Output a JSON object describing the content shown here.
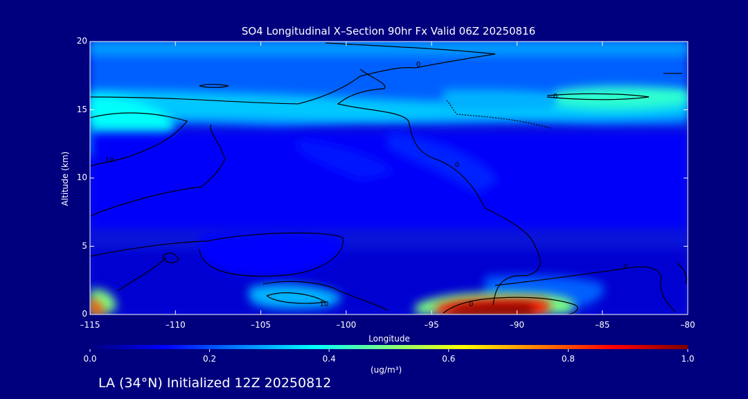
{
  "chart_data": {
    "type": "heatmap",
    "title": "SO4 Longitudinal X–Section 90hr  Fx Valid 06Z 20250816",
    "xlabel": "Longitude",
    "ylabel": "Altitude (km)",
    "xlim": [
      -115,
      -80
    ],
    "ylim": [
      0,
      20
    ],
    "x_ticks": [
      "–115",
      "–110",
      "–105",
      "–100",
      "–95",
      "–90",
      "–85",
      "–80"
    ],
    "x_tick_values": [
      -115,
      -110,
      -105,
      -100,
      -95,
      -90,
      -85,
      -80
    ],
    "y_ticks": [
      "0",
      "5",
      "10",
      "15",
      "20"
    ],
    "y_tick_values": [
      0,
      5,
      10,
      15,
      20
    ],
    "colorbar": {
      "range": [
        0.0,
        1.0
      ],
      "ticks": [
        "0.0",
        "0.2",
        "0.4",
        "0.6",
        "0.8",
        "1.0"
      ],
      "tick_values": [
        0.0,
        0.2,
        0.4,
        0.6,
        0.8,
        1.0
      ],
      "units": "(ug/m³)",
      "colormap": [
        "#00007f",
        "#0000ff",
        "#007fff",
        "#00ffff",
        "#7fff7f",
        "#ffff00",
        "#ff7f00",
        "#ff0000",
        "#7f0000"
      ]
    },
    "contour_labels": [
      "0",
      "0",
      "0",
      "0",
      "0",
      "10",
      "10"
    ],
    "features": [
      {
        "name": "upper-layer",
        "lon": [
          -115,
          -80
        ],
        "alt": [
          14,
          20
        ],
        "value": 0.25
      },
      {
        "name": "tropopause-max",
        "lon": [
          -115,
          -80
        ],
        "alt": [
          15,
          15.5
        ],
        "value": 0.4
      },
      {
        "name": "west-upper-max",
        "lon": -113.5,
        "alt": 14.2,
        "value": 0.45
      },
      {
        "name": "east-upper-max",
        "lon": -86.5,
        "alt": 15.2,
        "value": 0.45
      },
      {
        "name": "surface-max",
        "lon": -91,
        "alt": 0.3,
        "value": 1.0
      },
      {
        "name": "west-surface",
        "lon": -115,
        "alt": 0.3,
        "value": 0.75
      },
      {
        "name": "low-plume",
        "lon": -103,
        "alt": 1.5,
        "value": 0.35
      }
    ]
  },
  "text": {
    "footer": "LA (34°N) Initialized 12Z 20250812"
  }
}
